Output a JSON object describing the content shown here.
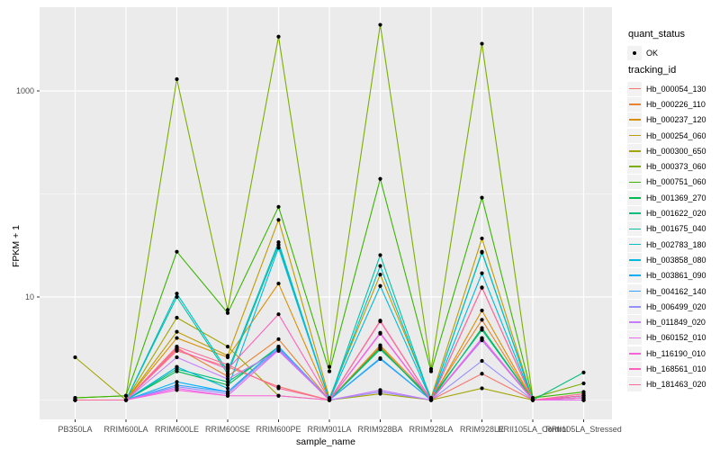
{
  "figure": {
    "background": "#FFFFFF",
    "panel_color": "#EBEBEB",
    "grid_color": "#FFFFFF",
    "legend_key_color": "#F2F2F2",
    "point_color": "#000000",
    "tick_text_color": "#4D4D4D"
  },
  "axes": {
    "y_tick_labels": [
      {
        "label": "1000",
        "value": 1000
      },
      {
        "label": "10",
        "value": 10
      }
    ],
    "y_minor_values": [
      100,
      1
    ]
  },
  "legend": {
    "quant_status": {
      "title": "quant_status",
      "items": [
        {
          "label": "OK",
          "glyph": "point"
        }
      ]
    },
    "tracking_id_title": "tracking_id"
  },
  "chart_data": {
    "type": "line",
    "title": "",
    "xlabel": "sample_name",
    "ylabel": "FPKM + 1",
    "y_scale": "log10",
    "ylim": [
      1,
      5000
    ],
    "grid": true,
    "legend_position": "right",
    "point_marker": "black dot on every vertex",
    "categories": [
      "PB350LA",
      "RRIM600LA",
      "RRIM600LE",
      "RRIM600SE",
      "RRIM600PE",
      "RRIM901LA",
      "RRIM928BA",
      "RRIM928LA",
      "RRIM928LE",
      "RRII105LA_Control",
      "RRII105LA_Stressed"
    ],
    "series": [
      {
        "name": "Hb_000054_130",
        "color": "#F8766D",
        "values": [
          1.0,
          1.0,
          3.0,
          2.1,
          1.35,
          1.0,
          1.2,
          1.0,
          1.8,
          1.0,
          1.1
        ]
      },
      {
        "name": "Hb_000226_110",
        "color": "#EA8331",
        "values": [
          1.0,
          1.0,
          3.2,
          1.7,
          3.9,
          1.0,
          3.4,
          1.05,
          6.0,
          1.0,
          1.05
        ]
      },
      {
        "name": "Hb_000237_120",
        "color": "#D89000",
        "values": [
          1.0,
          1.0,
          4.0,
          2.6,
          13.5,
          1.0,
          3.3,
          1.0,
          7.4,
          1.0,
          1.0
        ]
      },
      {
        "name": "Hb_000254_060",
        "color": "#C09B00",
        "values": [
          1.0,
          1.0,
          4.6,
          2.7,
          56,
          1.05,
          16.5,
          1.05,
          37,
          1.0,
          1.05
        ]
      },
      {
        "name": "Hb_000300_650",
        "color": "#A3A500",
        "values": [
          2.6,
          1.0,
          6.3,
          3.3,
          1.1,
          1.0,
          1.15,
          1.0,
          1.3,
          1.0,
          1.0
        ]
      },
      {
        "name": "Hb_000373_060",
        "color": "#7CAE00",
        "values": [
          1.05,
          1.1,
          1300,
          7.5,
          3360,
          2.1,
          4380,
          2.0,
          2870,
          1.05,
          1.45
        ]
      },
      {
        "name": "Hb_000751_060",
        "color": "#39B600",
        "values": [
          1.05,
          1.1,
          27.5,
          7.0,
          75,
          1.9,
          140,
          1.9,
          92,
          1.05,
          1.2
        ]
      },
      {
        "name": "Hb_001369_270",
        "color": "#00BB4E",
        "values": [
          1.0,
          1.0,
          1.9,
          1.4,
          3.3,
          1.0,
          3.2,
          1.0,
          5.0,
          1.0,
          1.1
        ]
      },
      {
        "name": "Hb_001622_020",
        "color": "#00BF7D",
        "values": [
          1.0,
          1.0,
          2.0,
          1.5,
          3.1,
          1.0,
          3.1,
          1.05,
          4.8,
          1.0,
          1.85
        ]
      },
      {
        "name": "Hb_001675_040",
        "color": "#00C1A3",
        "values": [
          1.0,
          1.0,
          10.0,
          1.8,
          32,
          1.0,
          25.5,
          1.0,
          27.5,
          1.0,
          1.1
        ]
      },
      {
        "name": "Hb_002783_180",
        "color": "#00BFC4",
        "values": [
          1.0,
          1.0,
          10.8,
          1.9,
          34,
          1.0,
          20.0,
          1.0,
          27.0,
          1.0,
          1.05
        ]
      },
      {
        "name": "Hb_003858_080",
        "color": "#00BAE0",
        "values": [
          1.0,
          1.0,
          2.1,
          1.3,
          30,
          1.0,
          12.8,
          1.0,
          17.0,
          1.0,
          1.0
        ]
      },
      {
        "name": "Hb_003861_090",
        "color": "#00B0F6",
        "values": [
          1.0,
          1.0,
          1.5,
          1.2,
          3.3,
          1.0,
          2.55,
          1.0,
          3.9,
          1.0,
          1.0
        ]
      },
      {
        "name": "Hb_004162_140",
        "color": "#35A2FF",
        "values": [
          1.0,
          1.0,
          1.4,
          1.2,
          3.1,
          1.0,
          2.5,
          1.0,
          3.8,
          1.0,
          1.0
        ]
      },
      {
        "name": "Hb_006499_020",
        "color": "#9590FF",
        "values": [
          1.0,
          1.0,
          1.35,
          1.15,
          3.2,
          1.0,
          1.2,
          1.0,
          2.4,
          1.0,
          1.0
        ]
      },
      {
        "name": "Hb_011849_020",
        "color": "#C77CFF",
        "values": [
          1.0,
          1.0,
          2.6,
          1.6,
          3.0,
          1.0,
          1.25,
          1.0,
          4.0,
          1.0,
          1.0
        ]
      },
      {
        "name": "Hb_060152_010",
        "color": "#E76BF3",
        "values": [
          1.0,
          1.0,
          1.3,
          1.1,
          3.05,
          1.0,
          4.5,
          1.0,
          3.95,
          1.0,
          1.0
        ]
      },
      {
        "name": "Hb_116190_010",
        "color": "#FA62DB",
        "values": [
          1.0,
          1.0,
          1.25,
          1.1,
          1.1,
          1.0,
          4.4,
          1.0,
          3.85,
          1.0,
          1.05
        ]
      },
      {
        "name": "Hb_168561_010",
        "color": "#FF62BC",
        "values": [
          1.0,
          1.0,
          3.1,
          2.0,
          6.8,
          1.0,
          5.8,
          1.0,
          12.4,
          1.0,
          1.1
        ]
      },
      {
        "name": "Hb_181463_020",
        "color": "#FF6A98",
        "values": [
          1.0,
          1.0,
          3.3,
          2.2,
          1.3,
          1.0,
          5.9,
          1.0,
          12.3,
          1.0,
          1.15
        ]
      }
    ]
  }
}
